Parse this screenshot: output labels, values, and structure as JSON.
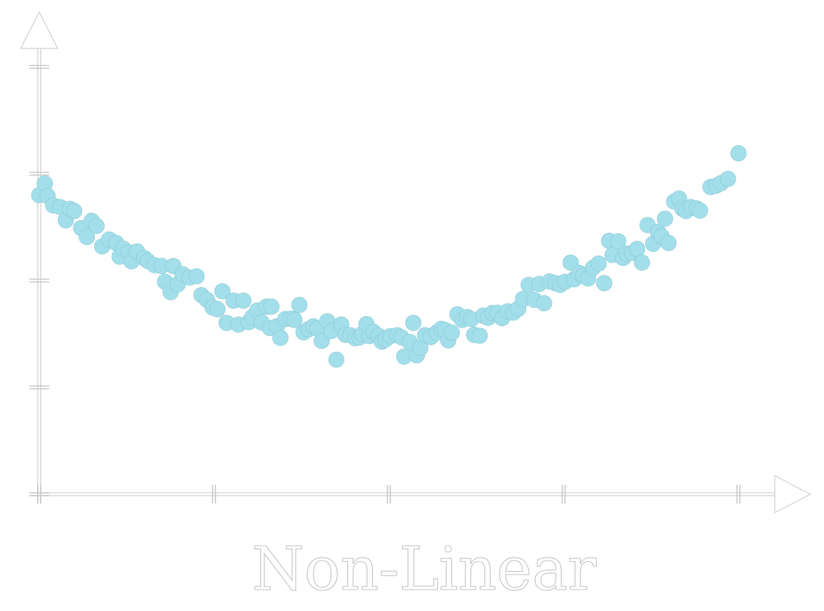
{
  "chart_data": {
    "type": "scatter",
    "title": "Non-Linear",
    "xlabel": "",
    "ylabel": "",
    "xlim": [
      0,
      1
    ],
    "ylim": [
      0,
      1
    ],
    "xticks": [
      0,
      0.25,
      0.5,
      0.75,
      1
    ],
    "yticks": [
      0,
      0.25,
      0.5,
      0.75,
      1
    ],
    "grid": false,
    "tick_labels_shown": false,
    "point_color": "#a2dfea",
    "points": [
      [
        0.0,
        0.7
      ],
      [
        0.008,
        0.727
      ],
      [
        0.012,
        0.698
      ],
      [
        0.02,
        0.676
      ],
      [
        0.03,
        0.672
      ],
      [
        0.038,
        0.641
      ],
      [
        0.044,
        0.668
      ],
      [
        0.05,
        0.663
      ],
      [
        0.06,
        0.623
      ],
      [
        0.068,
        0.602
      ],
      [
        0.075,
        0.64
      ],
      [
        0.082,
        0.628
      ],
      [
        0.09,
        0.58
      ],
      [
        0.1,
        0.596
      ],
      [
        0.11,
        0.588
      ],
      [
        0.115,
        0.556
      ],
      [
        0.12,
        0.575
      ],
      [
        0.128,
        0.566
      ],
      [
        0.132,
        0.545
      ],
      [
        0.14,
        0.568
      ],
      [
        0.15,
        0.553
      ],
      [
        0.155,
        0.546
      ],
      [
        0.165,
        0.536
      ],
      [
        0.175,
        0.534
      ],
      [
        0.18,
        0.497
      ],
      [
        0.188,
        0.473
      ],
      [
        0.192,
        0.534
      ],
      [
        0.198,
        0.491
      ],
      [
        0.205,
        0.515
      ],
      [
        0.215,
        0.507
      ],
      [
        0.225,
        0.51
      ],
      [
        0.232,
        0.466
      ],
      [
        0.24,
        0.455
      ],
      [
        0.248,
        0.437
      ],
      [
        0.255,
        0.433
      ],
      [
        0.262,
        0.475
      ],
      [
        0.268,
        0.401
      ],
      [
        0.278,
        0.453
      ],
      [
        0.285,
        0.397
      ],
      [
        0.292,
        0.453
      ],
      [
        0.3,
        0.403
      ],
      [
        0.305,
        0.415
      ],
      [
        0.312,
        0.43
      ],
      [
        0.318,
        0.402
      ],
      [
        0.325,
        0.439
      ],
      [
        0.332,
        0.439
      ],
      [
        0.33,
        0.389
      ],
      [
        0.34,
        0.393
      ],
      [
        0.345,
        0.366
      ],
      [
        0.352,
        0.41
      ],
      [
        0.36,
        0.411
      ],
      [
        0.365,
        0.408
      ],
      [
        0.372,
        0.443
      ],
      [
        0.378,
        0.379
      ],
      [
        0.385,
        0.386
      ],
      [
        0.392,
        0.393
      ],
      [
        0.398,
        0.388
      ],
      [
        0.404,
        0.359
      ],
      [
        0.412,
        0.405
      ],
      [
        0.418,
        0.382
      ],
      [
        0.425,
        0.315
      ],
      [
        0.432,
        0.397
      ],
      [
        0.438,
        0.373
      ],
      [
        0.445,
        0.372
      ],
      [
        0.452,
        0.365
      ],
      [
        0.458,
        0.367
      ],
      [
        0.462,
        0.375
      ],
      [
        0.468,
        0.398
      ],
      [
        0.472,
        0.37
      ],
      [
        0.478,
        0.38
      ],
      [
        0.485,
        0.371
      ],
      [
        0.49,
        0.357
      ],
      [
        0.495,
        0.362
      ],
      [
        0.502,
        0.37
      ],
      [
        0.512,
        0.372
      ],
      [
        0.518,
        0.367
      ],
      [
        0.522,
        0.322
      ],
      [
        0.53,
        0.356
      ],
      [
        0.535,
        0.401
      ],
      [
        0.54,
        0.325
      ],
      [
        0.545,
        0.342
      ],
      [
        0.552,
        0.372
      ],
      [
        0.56,
        0.368
      ],
      [
        0.568,
        0.378
      ],
      [
        0.575,
        0.387
      ],
      [
        0.58,
        0.385
      ],
      [
        0.585,
        0.36
      ],
      [
        0.59,
        0.378
      ],
      [
        0.598,
        0.421
      ],
      [
        0.605,
        0.408
      ],
      [
        0.612,
        0.415
      ],
      [
        0.618,
        0.41
      ],
      [
        0.622,
        0.373
      ],
      [
        0.63,
        0.371
      ],
      [
        0.635,
        0.418
      ],
      [
        0.642,
        0.413
      ],
      [
        0.648,
        0.424
      ],
      [
        0.655,
        0.425
      ],
      [
        0.662,
        0.412
      ],
      [
        0.67,
        0.428
      ],
      [
        0.678,
        0.425
      ],
      [
        0.685,
        0.434
      ],
      [
        0.692,
        0.457
      ],
      [
        0.7,
        0.49
      ],
      [
        0.708,
        0.455
      ],
      [
        0.715,
        0.492
      ],
      [
        0.722,
        0.447
      ],
      [
        0.73,
        0.498
      ],
      [
        0.738,
        0.494
      ],
      [
        0.745,
        0.49
      ],
      [
        0.752,
        0.497
      ],
      [
        0.76,
        0.542
      ],
      [
        0.765,
        0.503
      ],
      [
        0.772,
        0.518
      ],
      [
        0.778,
        0.512
      ],
      [
        0.785,
        0.505
      ],
      [
        0.792,
        0.53
      ],
      [
        0.8,
        0.54
      ],
      [
        0.808,
        0.494
      ],
      [
        0.815,
        0.593
      ],
      [
        0.82,
        0.56
      ],
      [
        0.828,
        0.592
      ],
      [
        0.835,
        0.553
      ],
      [
        0.84,
        0.563
      ],
      [
        0.848,
        0.565
      ],
      [
        0.855,
        0.574
      ],
      [
        0.862,
        0.542
      ],
      [
        0.87,
        0.63
      ],
      [
        0.878,
        0.586
      ],
      [
        0.885,
        0.614
      ],
      [
        0.89,
        0.604
      ],
      [
        0.895,
        0.645
      ],
      [
        0.9,
        0.588
      ],
      [
        0.908,
        0.685
      ],
      [
        0.915,
        0.692
      ],
      [
        0.92,
        0.668
      ],
      [
        0.925,
        0.663
      ],
      [
        0.932,
        0.672
      ],
      [
        0.94,
        0.669
      ],
      [
        0.945,
        0.664
      ],
      [
        0.96,
        0.719
      ],
      [
        0.968,
        0.722
      ],
      [
        0.975,
        0.728
      ],
      [
        0.985,
        0.738
      ],
      [
        1.0,
        0.798
      ]
    ]
  }
}
